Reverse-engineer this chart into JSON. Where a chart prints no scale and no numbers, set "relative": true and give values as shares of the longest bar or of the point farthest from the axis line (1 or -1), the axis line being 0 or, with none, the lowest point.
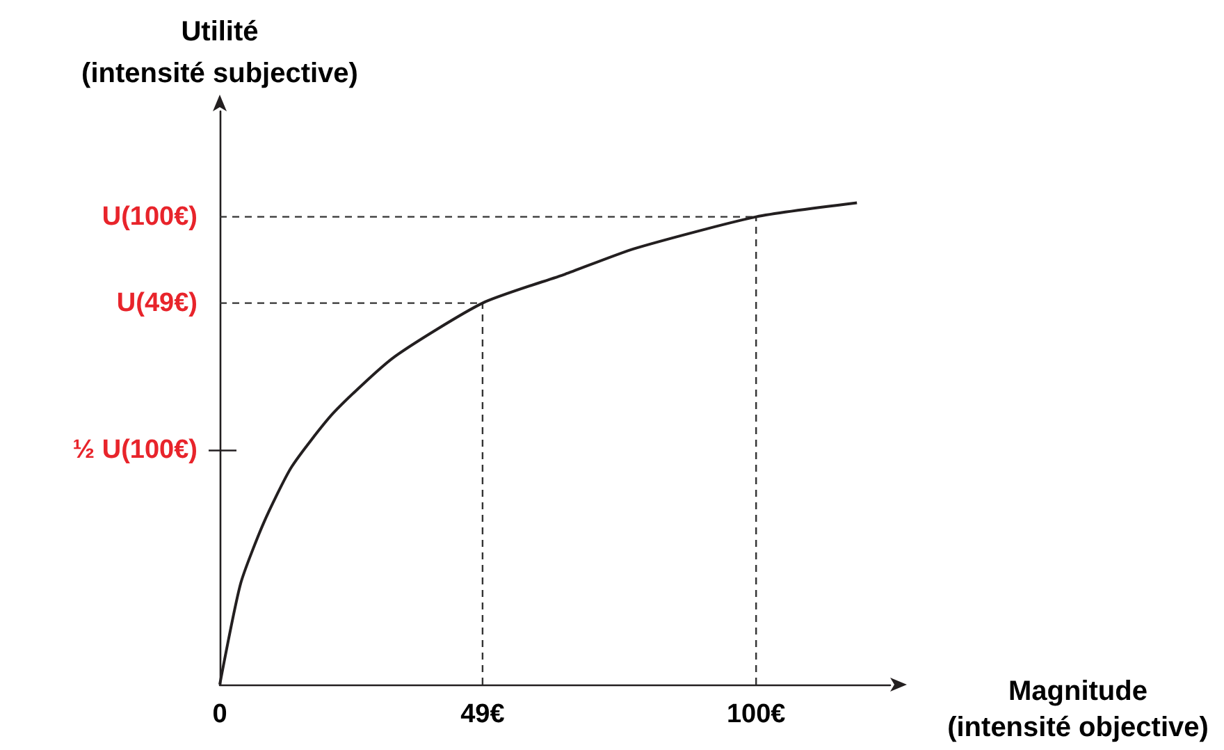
{
  "chart_data": {
    "type": "line",
    "relative": true,
    "xlabel": "Magnitude\n(intensité objective)",
    "ylabel": "Utilité\n(intensité subjective)",
    "x": [
      0,
      3.9,
      8.2,
      13.4,
      21.2,
      32.4,
      49,
      64.4,
      77.3,
      100,
      118.8
    ],
    "series": [
      {
        "color": "#231f20",
        "values": [
          0,
          0.21,
          0.336,
          0.452,
          0.564,
          0.679,
          0.792,
          0.852,
          0.905,
          0.971,
          1
        ]
      }
    ],
    "xlim": [
      0,
      125
    ],
    "xticks": [
      {
        "value": 0,
        "label": "0"
      },
      {
        "value": 49,
        "label": "49€"
      },
      {
        "value": 100,
        "label": "100€"
      }
    ],
    "ref_lines": [
      {
        "axis": "y",
        "value": 0.971,
        "label": "U(100€)",
        "line_style": "dashed"
      },
      {
        "axis": "y",
        "value": 0.792,
        "label": "U(49€)",
        "line_style": "dashed"
      },
      {
        "axis": "y",
        "value": 0.486,
        "label": "½ U(100€)"
      },
      {
        "axis": "x",
        "value": 49,
        "line_style": "dashed"
      },
      {
        "axis": "x",
        "value": 100,
        "line_style": "dashed"
      }
    ],
    "grid": false,
    "marker": "none",
    "line_style": "solid"
  }
}
